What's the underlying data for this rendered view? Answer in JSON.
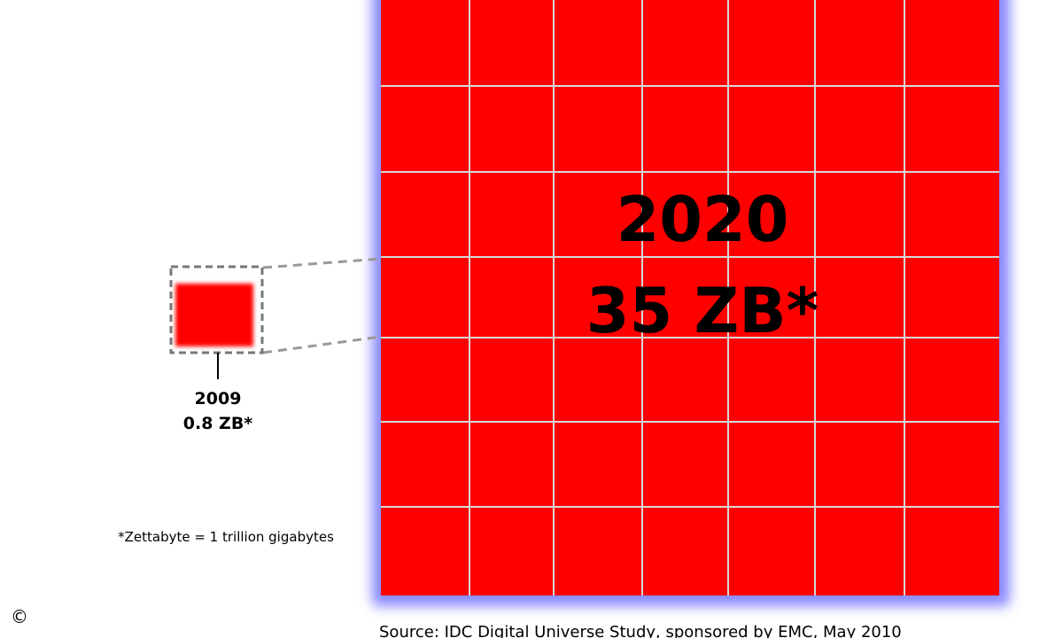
{
  "labels": {
    "big_year": "2020",
    "big_value": "35 ZB*",
    "small_year": "2009",
    "small_value": "0.8 ZB*",
    "footnote": "*Zettabyte = 1 trillion gigabytes",
    "source": "Source: IDC Digital Universe Study, sponsored by EMC, May 2010",
    "copyright_symbol": "©"
  },
  "colors": {
    "block_fill": "#ff0000",
    "grid_line": "#d8d8d8",
    "glow": "#8888ff",
    "dashed_line": "#999999",
    "dashed_frame": "#777777"
  },
  "icons": {
    "copyright": "copyright-icon"
  }
}
